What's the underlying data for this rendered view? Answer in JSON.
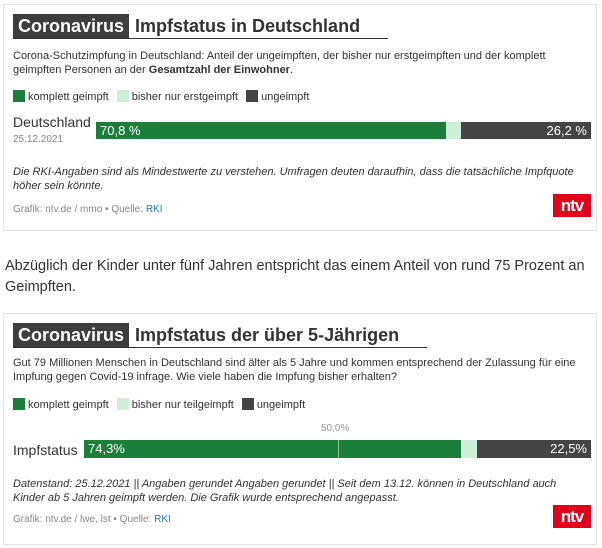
{
  "colors": {
    "full": "#1b7f3b",
    "partial": "#cfeed8",
    "none": "#444444",
    "tag": "#3d3d3d",
    "logo": "#e2001a",
    "link": "#1f7bbf"
  },
  "card1": {
    "tag": "Coronavirus",
    "title": "Impfstatus in Deutschland",
    "desc_pre": "Corona-Schutzimpfung in Deutschland: Anteil der ungeimpften, der bisher nur erstgeimpften und der komplett geimpften Personen an der ",
    "desc_bold": "Gesamtzahl der Einwohner",
    "desc_post": ".",
    "legend": [
      "komplett geimpft",
      "bisher nur erstgeimpft",
      "ungeimpft"
    ],
    "row_label": "Deutschland",
    "row_date": "25.12.2021",
    "label_full": "70,8 %",
    "label_none": "26,2 %",
    "note": "Die RKI-Angaben sind als Mindestwerte zu verstehen. Umfragen deuten daraufhin, dass die tatsächliche Impfquote höher sein könnte.",
    "credit": "Grafik: ntv.de / mmo • Quelle: ",
    "source": "RKI",
    "logo": "ntv"
  },
  "paragraph": "Abzüglich der Kinder unter fünf Jahren entspricht das einem Anteil von rund 75 Prozent an Geimpften.",
  "card2": {
    "tag": "Coronavirus",
    "title": "Impfstatus der über 5-Jährigen",
    "desc": "Gut 79 Millionen Menschen in Deutschland sind älter als 5 Jahre und kommen entsprechend der Zulassung für eine Impfung gegen Covid-19 infrage. Wie viele haben die Impfung bisher erhalten?",
    "legend": [
      "komplett geimpft",
      "bisher nur teilgeimpft",
      "ungeimpft"
    ],
    "midline_label": "50,0%",
    "row_label": "Impfstatus",
    "label_full": "74,3%",
    "label_none": "22,5%",
    "note": "Datenstand: 25.12.2021 || Angaben gerundet Angaben gerundet || Seit dem 13.12. können in Deutschland auch Kinder ab 5 Jahren geimpft werden. Die Grafik wurde entsprechend angepasst.",
    "credit": "Grafik: ntv.de / lwe, lst • Quelle: ",
    "source": "RKI",
    "logo": "ntv"
  },
  "chart_data": [
    {
      "type": "bar",
      "stacked": true,
      "orientation": "horizontal",
      "categories": [
        "Deutschland"
      ],
      "series": [
        {
          "name": "komplett geimpft",
          "values": [
            70.8
          ]
        },
        {
          "name": "bisher nur erstgeimpft",
          "values": [
            3.0
          ]
        },
        {
          "name": "ungeimpft",
          "values": [
            26.2
          ]
        }
      ],
      "xlim": [
        0,
        100
      ]
    },
    {
      "type": "bar",
      "stacked": true,
      "orientation": "horizontal",
      "categories": [
        "Impfstatus"
      ],
      "series": [
        {
          "name": "komplett geimpft",
          "values": [
            74.3
          ]
        },
        {
          "name": "bisher nur teilgeimpft",
          "values": [
            3.2
          ]
        },
        {
          "name": "ungeimpft",
          "values": [
            22.5
          ]
        }
      ],
      "xlim": [
        0,
        100
      ],
      "reference_line": 50
    }
  ]
}
